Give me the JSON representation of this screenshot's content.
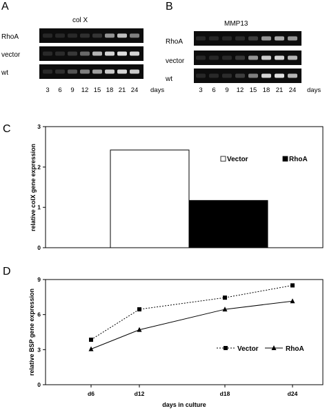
{
  "panels": {
    "a": {
      "letter": "A",
      "title": "col X",
      "rows": [
        "RhoA",
        "vector",
        "wt"
      ],
      "days": [
        "3",
        "6",
        "9",
        "12",
        "15",
        "18",
        "21",
        "24"
      ],
      "days_label": "days",
      "band_intensity": [
        [
          0.04,
          0.04,
          0.05,
          0.08,
          0.1,
          0.55,
          0.75,
          0.45
        ],
        [
          0.05,
          0.06,
          0.12,
          0.35,
          0.7,
          0.85,
          0.9,
          0.85
        ],
        [
          0.05,
          0.08,
          0.25,
          0.45,
          0.6,
          0.8,
          0.85,
          0.8
        ]
      ]
    },
    "b": {
      "letter": "B",
      "title": "MMP13",
      "rows": [
        "RhoA",
        "vector",
        "wt"
      ],
      "days": [
        "3",
        "6",
        "9",
        "12",
        "15",
        "18",
        "21",
        "24"
      ],
      "days_label": "days",
      "band_intensity": [
        [
          0.04,
          0.04,
          0.04,
          0.06,
          0.15,
          0.55,
          0.65,
          0.55
        ],
        [
          0.04,
          0.04,
          0.05,
          0.12,
          0.55,
          0.8,
          0.85,
          0.7
        ],
        [
          0.04,
          0.05,
          0.06,
          0.15,
          0.45,
          0.85,
          0.9,
          0.7
        ]
      ]
    },
    "c": {
      "letter": "C"
    },
    "d": {
      "letter": "D"
    }
  },
  "chart_data": [
    {
      "type": "bar",
      "panel": "C",
      "title": "",
      "xlabel": "",
      "ylabel": "relative colX gene expression",
      "ylim": [
        0,
        3
      ],
      "yticks": [
        "0",
        "1",
        "2",
        "3"
      ],
      "series": [
        {
          "name": "Vector",
          "values": [
            2.42
          ],
          "color": "#ffffff"
        },
        {
          "name": "RhoA",
          "values": [
            1.17
          ],
          "color": "#000000"
        }
      ],
      "legend": {
        "position": "top-right",
        "markers": [
          "□",
          "■"
        ]
      },
      "grid": false
    },
    {
      "type": "line",
      "panel": "D",
      "title": "",
      "xlabel": "days in culture",
      "ylabel": "relative BSP gene expression",
      "categories": [
        "d6",
        "d12",
        "d18",
        "d24"
      ],
      "ylim": [
        0,
        9
      ],
      "yticks": [
        "0",
        "3",
        "6",
        "9"
      ],
      "series": [
        {
          "name": "Vector",
          "values": [
            3.85,
            6.45,
            7.45,
            8.5
          ],
          "style": "dotted",
          "marker": "square"
        },
        {
          "name": "RhoA",
          "values": [
            3.05,
            4.7,
            6.45,
            7.15
          ],
          "style": "solid",
          "marker": "triangle"
        }
      ],
      "legend": {
        "position": "lower-right"
      },
      "grid": false
    }
  ]
}
